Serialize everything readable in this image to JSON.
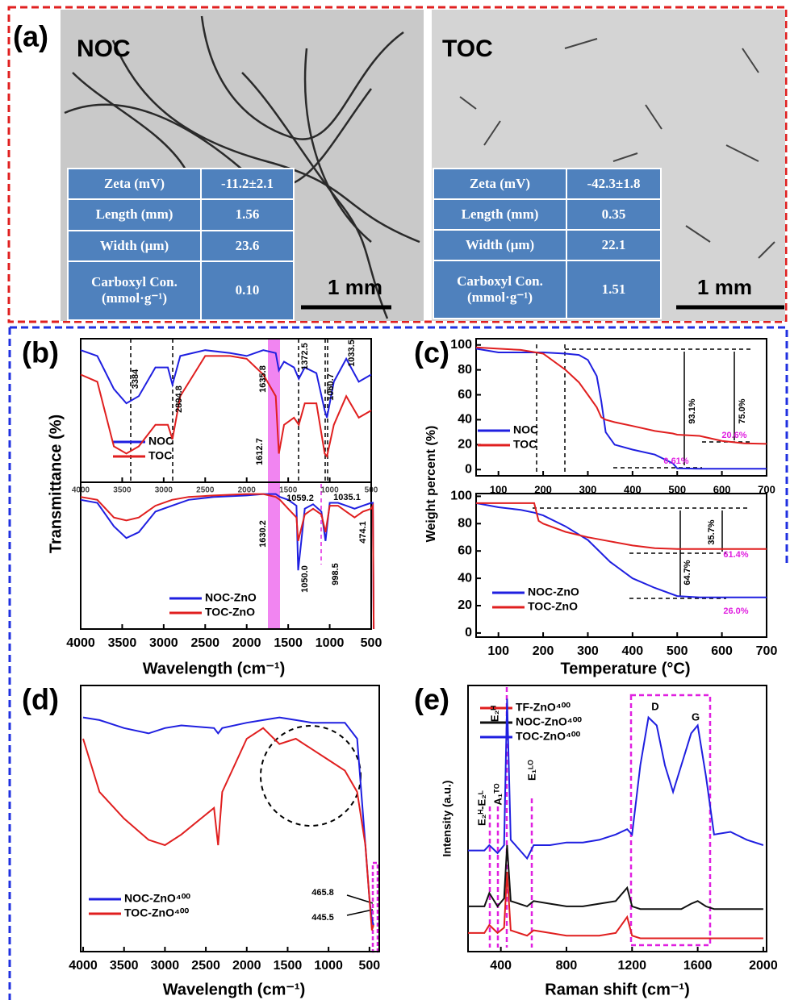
{
  "panel_a": {
    "label": "(a)",
    "images": [
      {
        "title": "NOC",
        "scale_bar": "1 mm",
        "table": [
          [
            "Zeta (mV)",
            "-11.2±2.1"
          ],
          [
            "Length (mm)",
            "1.56"
          ],
          [
            "Width (μm)",
            "23.6"
          ],
          [
            "Carboxyl Con. (mmol·g⁻¹)",
            "0.10"
          ]
        ]
      },
      {
        "title": "TOC",
        "scale_bar": "1 mm",
        "table": [
          [
            "Zeta (mV)",
            "-42.3±1.8"
          ],
          [
            "Length (mm)",
            "0.35"
          ],
          [
            "Width (μm)",
            "22.1"
          ],
          [
            "Carboxyl Con. (mmol·g⁻¹)",
            "1.51"
          ]
        ]
      }
    ]
  },
  "chart_data": [
    {
      "type": "line",
      "label": "(b)",
      "y_label": "Transmittance (%)",
      "xlim": [
        4000,
        500
      ],
      "ylim": [
        0,
        100
      ],
      "xticks": [
        4000,
        3500,
        3000,
        2500,
        2000,
        1500,
        1000,
        500
      ],
      "x": [
        4000,
        3800,
        3600,
        3450,
        3300,
        3100,
        2950,
        2895,
        2800,
        2500,
        2200,
        2000,
        1800,
        1650,
        1612,
        1550,
        1430,
        1372,
        1300,
        1160,
        1060,
        1033,
        950,
        800,
        650,
        500
      ],
      "series": [
        {
          "name": "NOC",
          "color": "#1f1fe0",
          "values": [
            92,
            88,
            65,
            55,
            60,
            80,
            80,
            68,
            88,
            92,
            90,
            88,
            92,
            90,
            78,
            84,
            80,
            72,
            80,
            76,
            50,
            45,
            70,
            86,
            70,
            75
          ]
        },
        {
          "name": "TOC",
          "color": "#e01f1f",
          "values": [
            75,
            70,
            25,
            20,
            25,
            40,
            40,
            30,
            60,
            88,
            88,
            86,
            75,
            60,
            20,
            40,
            45,
            40,
            55,
            55,
            20,
            18,
            40,
            60,
            45,
            50
          ]
        }
      ],
      "annotations": [
        "3384",
        "2894.8",
        "1635.8",
        "1372.5",
        "1060.7",
        "1033.5",
        "1612.7"
      ]
    },
    {
      "type": "line",
      "x_label": "Wavelength (cm⁻¹)",
      "xlim": [
        4000,
        500
      ],
      "ylim": [
        0,
        100
      ],
      "xticks": [
        4000,
        3500,
        3000,
        2500,
        2000,
        1500,
        1000,
        500
      ],
      "x": [
        4000,
        3800,
        3600,
        3450,
        3300,
        3100,
        2900,
        2700,
        2400,
        2000,
        1800,
        1650,
        1600,
        1500,
        1400,
        1380,
        1300,
        1200,
        1100,
        1050,
        1000,
        900,
        800,
        700,
        600,
        500,
        480,
        470
      ],
      "series": [
        {
          "name": "NOC-ZnO",
          "color": "#1f1fe0",
          "values": [
            88,
            86,
            70,
            62,
            66,
            80,
            84,
            88,
            90,
            91,
            92,
            92,
            90,
            88,
            84,
            40,
            82,
            85,
            80,
            60,
            86,
            86,
            84,
            82,
            84,
            86,
            86,
            0
          ]
        },
        {
          "name": "TOC-ZnO",
          "color": "#e01f1f",
          "values": [
            90,
            88,
            76,
            74,
            76,
            84,
            88,
            90,
            91,
            92,
            92,
            90,
            88,
            82,
            76,
            60,
            78,
            82,
            78,
            66,
            84,
            84,
            80,
            76,
            80,
            82,
            84,
            0
          ]
        }
      ],
      "annotations": [
        "1630.2",
        "1059.2",
        "1035.1",
        "1050.0",
        "998.5",
        "474.1"
      ]
    },
    {
      "type": "line",
      "label": "(c)",
      "y_label": "Weight percent (%)",
      "xlim": [
        50,
        700
      ],
      "ylim": [
        -5,
        105
      ],
      "xticks": [
        100,
        200,
        300,
        400,
        500,
        600,
        700
      ],
      "yticks": [
        0,
        20,
        40,
        60,
        80,
        100
      ],
      "x": [
        50,
        100,
        150,
        200,
        250,
        280,
        300,
        320,
        330,
        340,
        360,
        400,
        450,
        490,
        500,
        550,
        600,
        650,
        700
      ],
      "series": [
        {
          "name": "NOC",
          "color": "#1f1fe0",
          "values": [
            97,
            94,
            94,
            94,
            93,
            92,
            88,
            75,
            55,
            30,
            20,
            16,
            12,
            5,
            1,
            0.6,
            0.6,
            0.6,
            0.61
          ]
        },
        {
          "name": "TOC",
          "color": "#e01f1f",
          "values": [
            98,
            97,
            96,
            93,
            80,
            70,
            60,
            50,
            42,
            40,
            38,
            35,
            31,
            29,
            28,
            27,
            23,
            21,
            20.6
          ]
        }
      ],
      "annotations": [
        "93.1%",
        "75.0%",
        "20.6%",
        "0.61%"
      ]
    },
    {
      "type": "line",
      "x_label": "Temperature (°C)",
      "xlim": [
        50,
        700
      ],
      "ylim": [
        -3,
        102
      ],
      "xticks": [
        100,
        200,
        300,
        400,
        500,
        600,
        700
      ],
      "yticks": [
        0,
        20,
        40,
        60,
        80,
        100
      ],
      "x": [
        50,
        100,
        150,
        180,
        190,
        200,
        250,
        300,
        350,
        400,
        450,
        500,
        550,
        600,
        650,
        700
      ],
      "series": [
        {
          "name": "NOC-ZnO",
          "color": "#1f1fe0",
          "values": [
            95,
            92,
            90,
            88,
            87,
            86,
            78,
            68,
            52,
            40,
            33,
            27,
            26,
            26,
            26,
            26
          ]
        },
        {
          "name": "TOC-ZnO",
          "color": "#e01f1f",
          "values": [
            95,
            95,
            95,
            95,
            82,
            80,
            74,
            70,
            67,
            64,
            62,
            61.4,
            61.4,
            61.4,
            61.4,
            61.4
          ]
        }
      ],
      "annotations": [
        "35.7%",
        "64.7%",
        "61.4%",
        "26.0%"
      ]
    },
    {
      "type": "line",
      "label": "(d)",
      "x_label": "Wavelength (cm⁻¹)",
      "xlim": [
        4030,
        380
      ],
      "ylim": [
        0,
        100
      ],
      "xticks": [
        4000,
        3500,
        3000,
        2500,
        2000,
        1500,
        1000,
        500
      ],
      "x": [
        4000,
        3800,
        3500,
        3200,
        3000,
        2800,
        2400,
        2350,
        2300,
        2000,
        1800,
        1600,
        1400,
        1200,
        1000,
        800,
        650,
        550,
        500,
        470,
        450
      ],
      "series": [
        {
          "name": "NOC-ZnO⁴⁰⁰",
          "color": "#1f1fe0",
          "values": [
            88,
            87,
            84,
            82,
            84,
            85,
            84,
            82,
            84,
            86,
            87,
            88,
            87,
            86,
            86,
            86,
            80,
            40,
            20,
            12,
            10
          ]
        },
        {
          "name": "TOC-ZnO⁴⁰⁰",
          "color": "#e01f1f",
          "values": [
            80,
            60,
            50,
            42,
            40,
            44,
            54,
            40,
            60,
            80,
            84,
            78,
            80,
            76,
            72,
            68,
            60,
            40,
            20,
            8,
            10
          ]
        }
      ],
      "annotations": [
        "465.8",
        "445.5"
      ]
    },
    {
      "type": "line",
      "label": "(e)",
      "x_label": "Raman shift (cm⁻¹)",
      "y_label": "Intensity (a.u.)",
      "xlim": [
        200,
        2020
      ],
      "ylim": [
        0,
        100
      ],
      "xticks": [
        400,
        800,
        1200,
        1600,
        2000
      ],
      "x": [
        200,
        300,
        330,
        380,
        420,
        438,
        460,
        560,
        600,
        700,
        800,
        900,
        1000,
        1100,
        1170,
        1200,
        1250,
        1300,
        1350,
        1400,
        1450,
        1500,
        1560,
        1600,
        1650,
        1700,
        1800,
        1900,
        2000
      ],
      "series": [
        {
          "name": "TF-ZnO⁴⁰⁰",
          "color": "#e01f1f",
          "values": [
            7,
            7,
            10,
            7,
            9,
            30,
            8,
            6,
            8,
            7,
            6,
            6,
            6,
            7,
            13,
            6,
            5,
            5,
            5,
            5,
            5,
            5,
            5,
            5,
            5,
            5,
            5,
            5,
            5
          ]
        },
        {
          "name": "NOC-ZnO⁴⁰⁰",
          "color": "#111111",
          "values": [
            17,
            17,
            22,
            17,
            20,
            40,
            19,
            17,
            19,
            18,
            17,
            17,
            18,
            19,
            24,
            17,
            16,
            16,
            16,
            16,
            16,
            16,
            18,
            19,
            17,
            16,
            16,
            16,
            16
          ]
        },
        {
          "name": "TOC-ZnO⁴⁰⁰",
          "color": "#1f1fe0",
          "values": [
            38,
            38,
            40,
            37,
            40,
            95,
            42,
            35,
            40,
            40,
            41,
            41,
            42,
            44,
            46,
            44,
            70,
            88,
            85,
            70,
            60,
            70,
            82,
            85,
            66,
            44,
            45,
            42,
            40
          ]
        }
      ],
      "annotations": [
        "E₂ᴴ-E₂ᴸ",
        "A₁ᵀᴼ",
        "E₂ᴴ",
        "E₁ᴸᴼ",
        "D",
        "G"
      ]
    }
  ]
}
